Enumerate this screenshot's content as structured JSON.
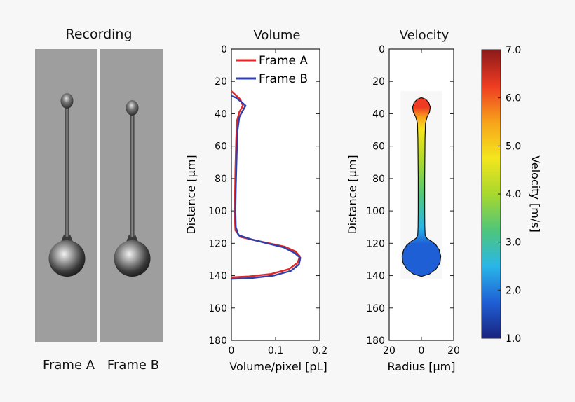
{
  "recording": {
    "title": "Recording",
    "frames": [
      "Frame A",
      "Frame B"
    ]
  },
  "chart_data": [
    {
      "type": "line",
      "title": "Volume",
      "xlabel": "Volume/pixel [pL]",
      "ylabel": "Distance [µm]",
      "xlim": [
        0,
        0.2
      ],
      "ylim": [
        180,
        0
      ],
      "xticks": [
        0,
        0.1,
        0.2
      ],
      "yticks": [
        0,
        20,
        40,
        60,
        80,
        100,
        120,
        140,
        160,
        180
      ],
      "legend_position": "top-right",
      "series": [
        {
          "name": "Frame A",
          "color": "#e32626",
          "points": [
            [
              0,
              26
            ],
            [
              0.008,
              28
            ],
            [
              0.02,
              31
            ],
            [
              0.026,
              35
            ],
            [
              0.018,
              39
            ],
            [
              0.013,
              44
            ],
            [
              0.011,
              55
            ],
            [
              0.009,
              75
            ],
            [
              0.008,
              95
            ],
            [
              0.008,
              105
            ],
            [
              0.009,
              112
            ],
            [
              0.02,
              116
            ],
            [
              0.05,
              118
            ],
            [
              0.085,
              120
            ],
            [
              0.12,
              122
            ],
            [
              0.145,
              125
            ],
            [
              0.155,
              128
            ],
            [
              0.15,
              132
            ],
            [
              0.13,
              136
            ],
            [
              0.09,
              139
            ],
            [
              0.04,
              140.5
            ],
            [
              0,
              141
            ]
          ]
        },
        {
          "name": "Frame B",
          "color": "#3040a8",
          "points": [
            [
              0,
              29
            ],
            [
              0.01,
              30
            ],
            [
              0.024,
              33
            ],
            [
              0.032,
              35
            ],
            [
              0.026,
              38
            ],
            [
              0.018,
              42
            ],
            [
              0.014,
              50
            ],
            [
              0.012,
              65
            ],
            [
              0.01,
              85
            ],
            [
              0.009,
              100
            ],
            [
              0.01,
              110
            ],
            [
              0.016,
              115
            ],
            [
              0.045,
              117.5
            ],
            [
              0.08,
              120
            ],
            [
              0.118,
              122.5
            ],
            [
              0.143,
              126
            ],
            [
              0.156,
              129
            ],
            [
              0.153,
              133
            ],
            [
              0.135,
              137
            ],
            [
              0.095,
              140
            ],
            [
              0.045,
              141.5
            ],
            [
              0,
              142
            ]
          ]
        }
      ]
    },
    {
      "type": "heatmap",
      "title": "Velocity",
      "xlabel": "Radius [µm]",
      "ylabel": "Distance [µm]",
      "xlim": [
        -20,
        20
      ],
      "ylim": [
        180,
        0
      ],
      "xticks": [
        -20,
        0,
        20
      ],
      "xtick_labels": [
        "20",
        "0",
        "20"
      ],
      "yticks": [
        0,
        20,
        40,
        60,
        80,
        100,
        120,
        140,
        160,
        180
      ],
      "shape_profile": {
        "distance": [
          30,
          31,
          33,
          36,
          39,
          42,
          46,
          55,
          80,
          100,
          110,
          115,
          117,
          119,
          121,
          124,
          128,
          132,
          136,
          139,
          140.5
        ],
        "radius": [
          0,
          2.5,
          4.5,
          5.5,
          5,
          3.5,
          2.5,
          2.2,
          2.0,
          2.0,
          2.1,
          2.3,
          3.5,
          6.5,
          9,
          11,
          12,
          11.5,
          9,
          5,
          0
        ]
      },
      "velocity_profile": {
        "distance": [
          30,
          36,
          42,
          50,
          70,
          90,
          110,
          120,
          130,
          140
        ],
        "velocity": [
          6.4,
          6.0,
          5.2,
          4.6,
          4.0,
          3.4,
          2.8,
          2.1,
          1.6,
          1.5
        ]
      },
      "colorbar": {
        "label": "Velocity [m/s]",
        "min": 1.0,
        "max": 7.0,
        "ticks": [
          "7.0",
          "6.0",
          "5.0",
          "4.0",
          "3.0",
          "2.0",
          "1.0"
        ],
        "colors": [
          "#1a237e",
          "#1f5fd6",
          "#29b6e8",
          "#4fc67a",
          "#a8d82e",
          "#f4e61c",
          "#f7a21b",
          "#ee3b22",
          "#8b1a1a"
        ]
      }
    }
  ]
}
